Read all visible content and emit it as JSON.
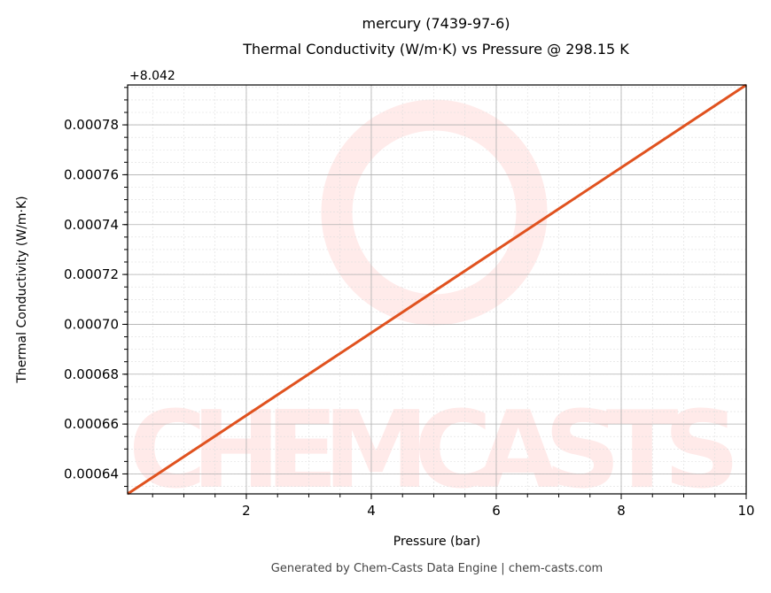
{
  "chart_data": {
    "type": "line",
    "title": "mercury (7439-97-6)",
    "subtitle": "Thermal Conductivity (W/m·K) vs Pressure @ 298.15 K",
    "xlabel": "Pressure (bar)",
    "ylabel": "Thermal Conductivity (W/m·K)",
    "y_offset_label": "+8.042",
    "xlim": [
      0.1,
      10
    ],
    "ylim": [
      0.000632,
      0.000796
    ],
    "x_ticks": [
      2,
      4,
      6,
      8,
      10
    ],
    "x_tick_labels": [
      "2",
      "4",
      "6",
      "8",
      "10"
    ],
    "y_ticks": [
      0.00064,
      0.00066,
      0.00068,
      0.0007,
      0.00072,
      0.00074,
      0.00076,
      0.00078
    ],
    "y_tick_labels": [
      "0.00064",
      "0.00066",
      "0.00068",
      "0.00070",
      "0.00072",
      "0.00074",
      "0.00076",
      "0.00078"
    ],
    "grid": true,
    "series": [
      {
        "name": "Thermal Conductivity",
        "color": "#e0521f",
        "x": [
          0.1,
          10
        ],
        "y": [
          0.000632,
          0.000796
        ]
      }
    ],
    "watermark": "CHEMCASTS",
    "footer": "Generated by Chem-Casts Data Engine | chem-casts.com"
  }
}
